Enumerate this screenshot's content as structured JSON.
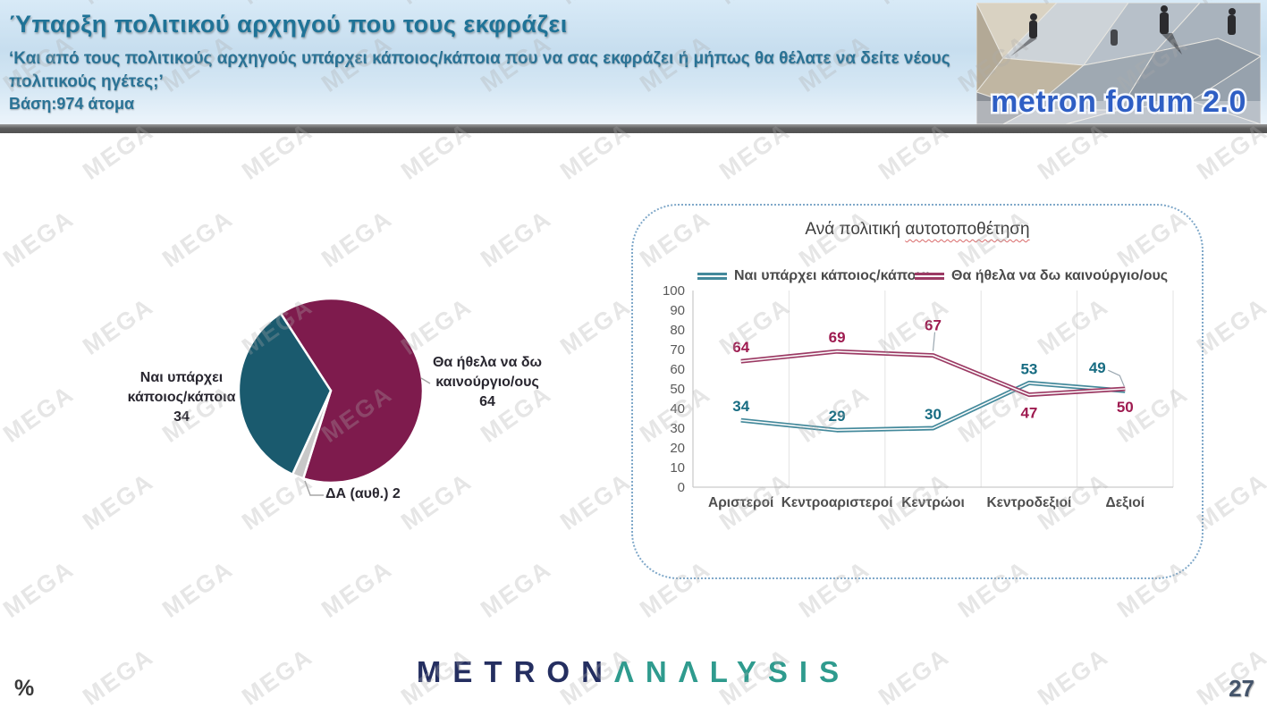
{
  "header": {
    "title": "Ύπαρξη πολιτικού αρχηγού που τους εκφράζει",
    "subtitle": "‘Και από τους πολιτικούς αρχηγούς υπάρχει κάποιος/κάποια που να σας εκφράζει ή μήπως θα θέλατε να δείτε νέους πολιτικούς ηγέτες;’",
    "base": "Βάση:974 άτομα"
  },
  "logo_photo": {
    "text": "metron forum 2.0"
  },
  "watermark": {
    "text": "MEGA"
  },
  "footer": {
    "percent_symbol": "%",
    "page_number": "27",
    "brand_metron": "METRON",
    "brand_analysis": "ΛΝΛLYSIS"
  },
  "colors": {
    "pie_maroon": "#7E1B4D",
    "pie_teal": "#1A5A6E",
    "pie_gray": "#C8C8C8",
    "line_teal": "#43899B",
    "line_maroon": "#9C3A64",
    "header_teal_text": "#2a7396",
    "panel_border_blue": "#7fa8c9"
  },
  "chart_data": [
    {
      "type": "pie",
      "start_angle_deg": -33,
      "direction": "clockwise",
      "slices": [
        {
          "label": "Θα ήθελα να δω καινούργιο/ους",
          "value": 64,
          "color": "#7E1B4D"
        },
        {
          "label": "ΔΑ (αυθ.)",
          "value": 2,
          "color": "#C8C8C8"
        },
        {
          "label": "Ναι υπάρχει κάποιος/κάποια",
          "value": 34,
          "color": "#1A5A6E"
        }
      ]
    },
    {
      "type": "line",
      "title": "Ανά πολιτική αυτοτοποθέτηση",
      "title_parts": {
        "plain": "Ανά πολιτική",
        "wavy": "αυτοτοποθέτηση"
      },
      "categories": [
        "Αριστεροί",
        "Κεντροαριστεροί",
        "Κεντρώοι",
        "Κεντροδεξιοί",
        "Δεξιοί"
      ],
      "ylim": [
        0,
        100
      ],
      "yticks": [
        0,
        10,
        20,
        30,
        40,
        50,
        60,
        70,
        80,
        90,
        100
      ],
      "gridlines": "vertical-only",
      "legend_position": "top",
      "series": [
        {
          "name": "Ναι υπάρχει κάποιος/κάποια",
          "color": "#43899B",
          "label_color": "#176C82",
          "values": [
            34,
            29,
            30,
            53,
            49
          ],
          "label_placement": [
            "above",
            "above",
            "above",
            "above",
            "leader-left"
          ]
        },
        {
          "name": "Θα ήθελα να δω καινούργιο/ους",
          "color": "#9C3A64",
          "label_color": "#9E1B50",
          "values": [
            64,
            69,
            67,
            47,
            50
          ],
          "label_placement": [
            "above",
            "above",
            "leader-up",
            "below",
            "below"
          ]
        }
      ]
    }
  ]
}
